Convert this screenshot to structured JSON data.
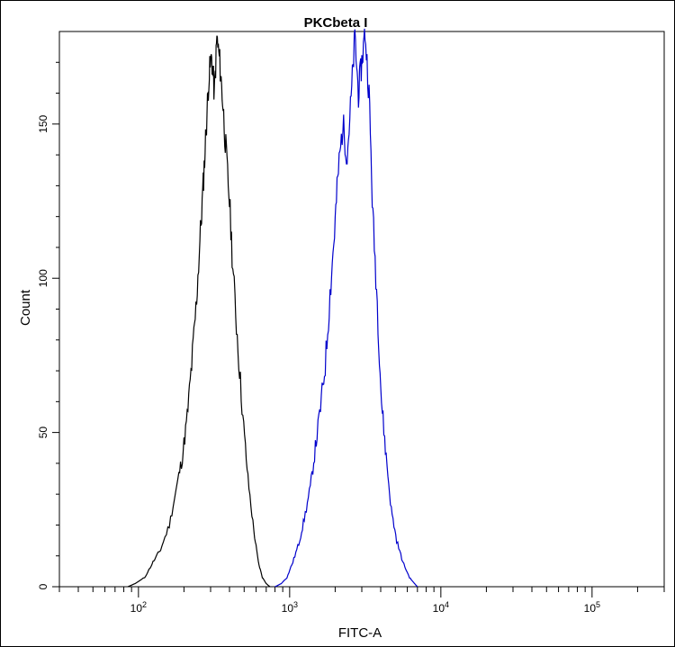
{
  "chart_data": {
    "type": "line",
    "title": "PKCbeta I",
    "xlabel": "FITC-A",
    "ylabel": "Count",
    "xscale": "log",
    "xlim": [
      30,
      300000
    ],
    "ylim": [
      0,
      180
    ],
    "grid": false,
    "legend": "none",
    "x_ticks": [
      {
        "base": "10",
        "exp": "2",
        "value": 100
      },
      {
        "base": "10",
        "exp": "3",
        "value": 1000
      },
      {
        "base": "10",
        "exp": "4",
        "value": 10000
      },
      {
        "base": "10",
        "exp": "5",
        "value": 100000
      }
    ],
    "y_ticks": [
      {
        "label": "0",
        "value": 0
      },
      {
        "label": "50",
        "value": 50
      },
      {
        "label": "100",
        "value": 100
      },
      {
        "label": "150",
        "value": 150
      }
    ],
    "series": [
      {
        "color": "#000000",
        "points": [
          [
            85,
            0
          ],
          [
            95,
            1
          ],
          [
            110,
            3
          ],
          [
            125,
            8
          ],
          [
            140,
            12
          ],
          [
            160,
            20
          ],
          [
            180,
            33
          ],
          [
            195,
            42
          ],
          [
            210,
            55
          ],
          [
            225,
            72
          ],
          [
            240,
            90
          ],
          [
            255,
            112
          ],
          [
            268,
            130
          ],
          [
            280,
            148
          ],
          [
            292,
            165
          ],
          [
            305,
            172
          ],
          [
            318,
            160
          ],
          [
            330,
            178
          ],
          [
            345,
            170
          ],
          [
            360,
            158
          ],
          [
            378,
            142
          ],
          [
            400,
            125
          ],
          [
            425,
            100
          ],
          [
            455,
            78
          ],
          [
            490,
            55
          ],
          [
            530,
            35
          ],
          [
            580,
            18
          ],
          [
            620,
            8
          ],
          [
            660,
            3
          ],
          [
            700,
            1
          ],
          [
            740,
            0
          ]
        ]
      },
      {
        "color": "#0000cc",
        "points": [
          [
            800,
            0
          ],
          [
            880,
            1
          ],
          [
            960,
            3
          ],
          [
            1050,
            8
          ],
          [
            1150,
            14
          ],
          [
            1250,
            22
          ],
          [
            1370,
            32
          ],
          [
            1480,
            45
          ],
          [
            1600,
            58
          ],
          [
            1720,
            72
          ],
          [
            1850,
            95
          ],
          [
            1980,
            115
          ],
          [
            2100,
            135
          ],
          [
            2250,
            150
          ],
          [
            2400,
            140
          ],
          [
            2550,
            158
          ],
          [
            2700,
            178
          ],
          [
            2850,
            160
          ],
          [
            3000,
            170
          ],
          [
            3150,
            180
          ],
          [
            3350,
            160
          ],
          [
            3550,
            120
          ],
          [
            3800,
            92
          ],
          [
            4050,
            60
          ],
          [
            4350,
            42
          ],
          [
            4700,
            25
          ],
          [
            5100,
            15
          ],
          [
            5600,
            8
          ],
          [
            6200,
            3
          ],
          [
            6700,
            1
          ],
          [
            7000,
            0
          ]
        ]
      }
    ]
  }
}
